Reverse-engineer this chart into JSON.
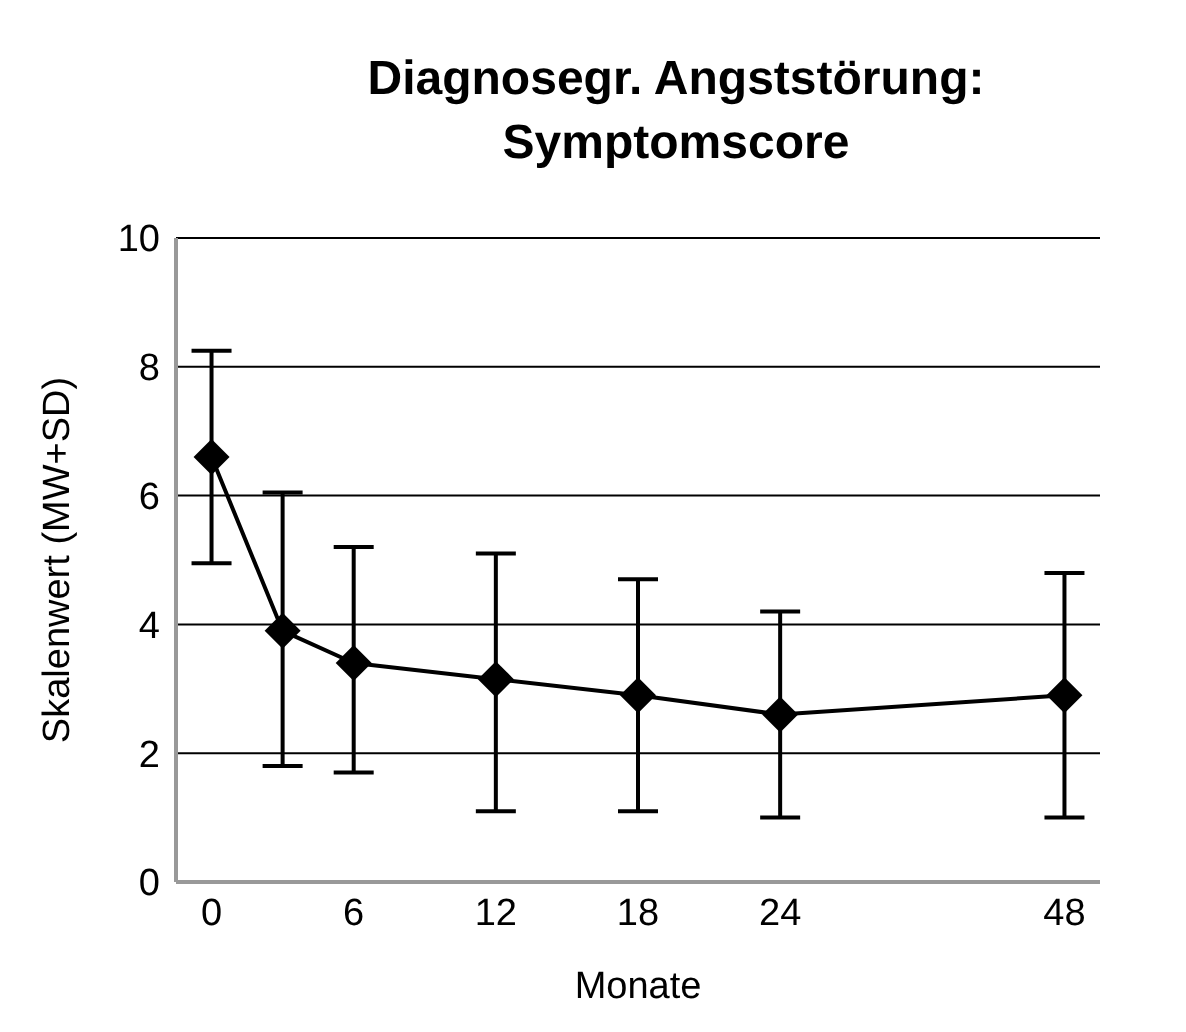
{
  "chart_data": {
    "type": "line",
    "title": "Diagnosegr. Angststörung: Symptomscore",
    "xlabel": "Monate",
    "ylabel": "Skalenwert (MW+SD)",
    "categories": [
      "0",
      null,
      "6",
      null,
      "12",
      null,
      "18",
      null,
      "24",
      null,
      null,
      null,
      "48"
    ],
    "series": [
      {
        "color": "#000000",
        "values": [
          6.6,
          3.9,
          3.4,
          null,
          3.15,
          null,
          2.9,
          null,
          2.6,
          null,
          null,
          null,
          2.9
        ],
        "errors": [
          [
            4.95,
            8.25
          ],
          [
            1.8,
            6.05
          ],
          [
            1.7,
            5.2
          ],
          null,
          [
            1.1,
            5.1
          ],
          null,
          [
            1.1,
            4.7
          ],
          null,
          [
            1.0,
            4.2
          ],
          null,
          null,
          null,
          [
            1.0,
            4.8
          ]
        ]
      }
    ],
    "ylim": [
      0,
      10
    ],
    "yticks": [
      0,
      2,
      4,
      6,
      8,
      10
    ],
    "grid": "y",
    "marker": "diamond",
    "line_style": "solid"
  }
}
